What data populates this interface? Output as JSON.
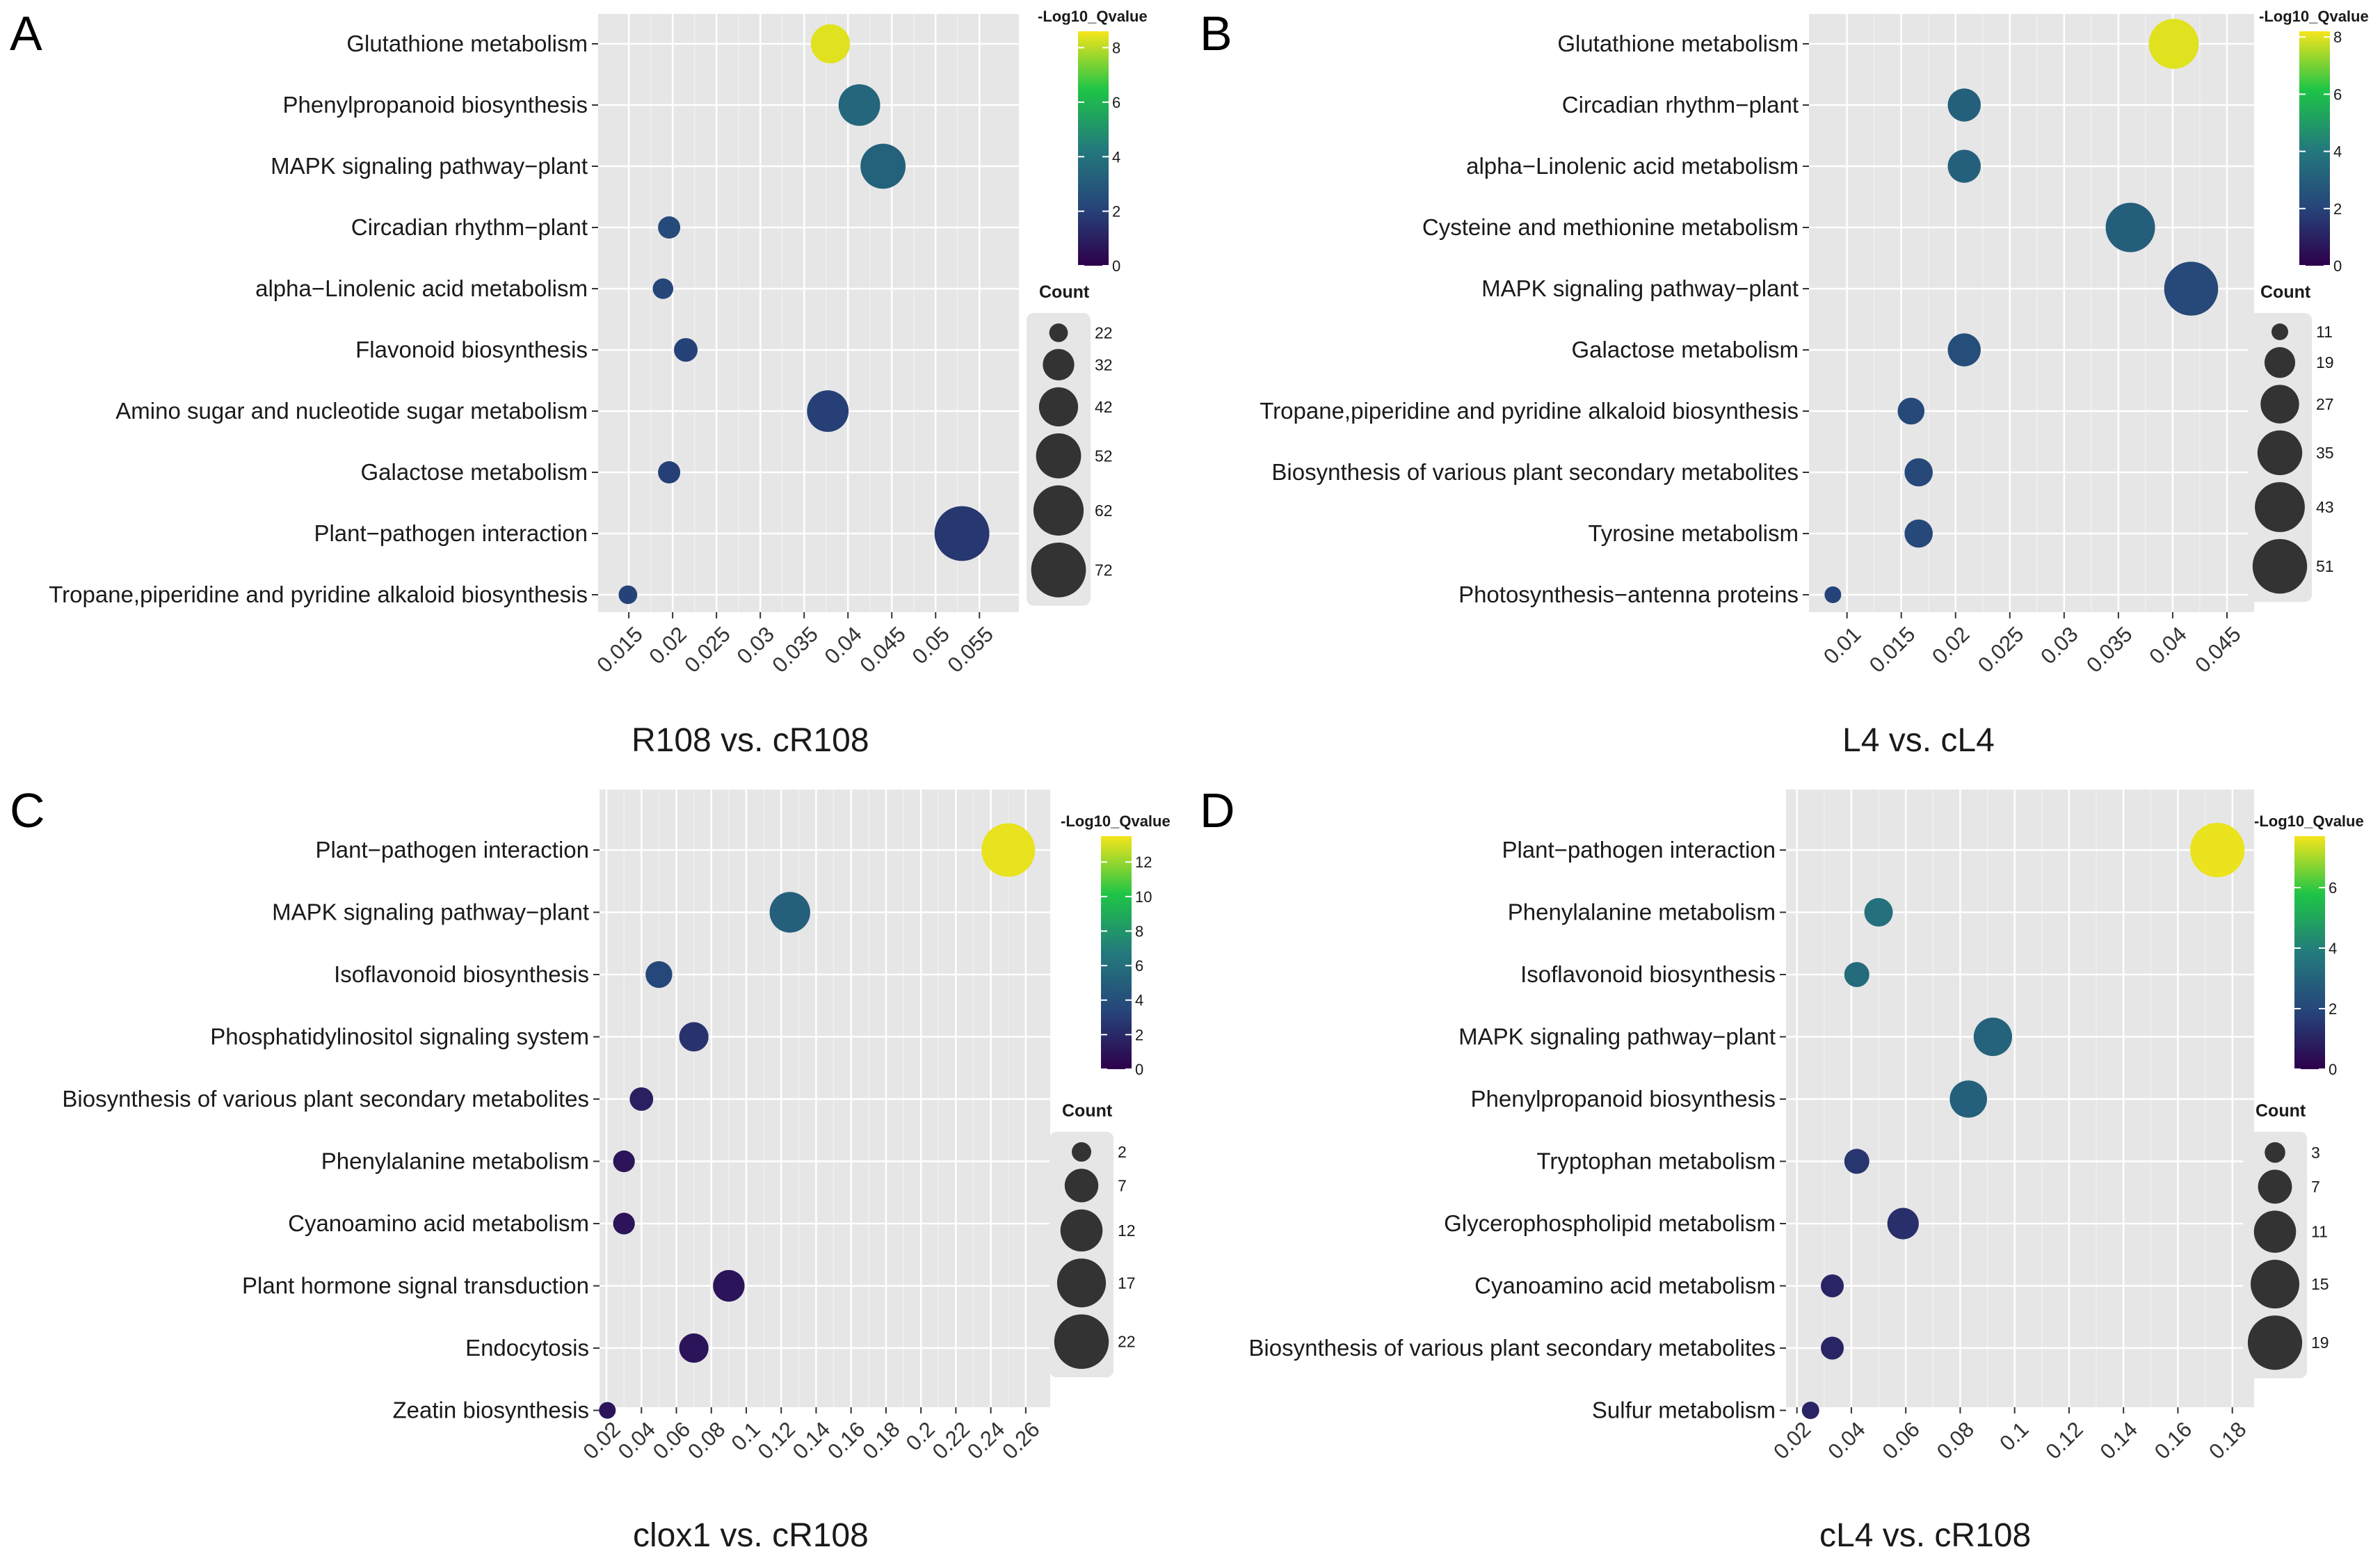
{
  "chart_data": [
    {
      "type": "scatter",
      "panel_label": "A",
      "title": "R108 vs. cR108",
      "color_title": "-Log10_Qvalue",
      "color_max": 8.6,
      "color_ticks": [
        0,
        2,
        4,
        6,
        8
      ],
      "size_title": "Count",
      "size_range": [
        20,
        74
      ],
      "size_ticks": [
        22,
        32,
        42,
        52,
        62,
        72
      ],
      "xlim": [
        0.0115,
        0.0595
      ],
      "x_ticks": [
        0.015,
        0.02,
        0.025,
        0.03,
        0.035,
        0.04,
        0.045,
        0.05,
        0.055
      ],
      "x_tick_labels": [
        "0.015",
        "0.02",
        "0.025",
        "0.03",
        "0.035",
        "0.04",
        "0.045",
        "0.05",
        "0.055"
      ],
      "points": [
        {
          "term": "Glutathione metabolism",
          "x": 0.038,
          "count": 42,
          "q": 8.4
        },
        {
          "term": "Phenylpropanoid biosynthesis",
          "x": 0.0413,
          "count": 46,
          "q": 3.5
        },
        {
          "term": "MAPK signaling pathway−plant",
          "x": 0.044,
          "count": 52,
          "q": 3.3
        },
        {
          "term": "Circadian rhythm−plant",
          "x": 0.0196,
          "count": 24,
          "q": 2.4
        },
        {
          "term": "alpha−Linolenic acid metabolism",
          "x": 0.0189,
          "count": 23,
          "q": 2.2
        },
        {
          "term": "Flavonoid biosynthesis",
          "x": 0.0215,
          "count": 25,
          "q": 2.1
        },
        {
          "term": "Amino sugar and nucleotide sugar metabolism",
          "x": 0.0377,
          "count": 46,
          "q": 2.0
        },
        {
          "term": "Galactose metabolism",
          "x": 0.0196,
          "count": 24,
          "q": 2.0
        },
        {
          "term": "Plant−pathogen interaction",
          "x": 0.053,
          "count": 72,
          "q": 1.7
        },
        {
          "term": "Tropane,piperidine and pyridine alkaloid biosynthesis",
          "x": 0.0149,
          "count": 22,
          "q": 2.1
        }
      ]
    },
    {
      "type": "scatter",
      "panel_label": "B",
      "title": "L4 vs. cL4",
      "color_title": "-Log10_Qvalue",
      "color_max": 8.2,
      "color_ticks": [
        0,
        2,
        4,
        6,
        8
      ],
      "size_title": "Count",
      "size_range": [
        10,
        53
      ],
      "size_ticks": [
        11,
        19,
        27,
        35,
        43,
        51
      ],
      "xlim": [
        0.0065,
        0.0475
      ],
      "x_ticks": [
        0.01,
        0.015,
        0.02,
        0.025,
        0.03,
        0.035,
        0.04,
        0.045
      ],
      "x_tick_labels": [
        "0.01",
        "0.015",
        "0.02",
        "0.025",
        "0.03",
        "0.035",
        "0.04",
        "0.045"
      ],
      "points": [
        {
          "term": "Glutathione metabolism",
          "x": 0.0401,
          "count": 43,
          "q": 8.0
        },
        {
          "term": "Circadian rhythm−plant",
          "x": 0.0208,
          "count": 21,
          "q": 3.1
        },
        {
          "term": "alpha−Linolenic acid metabolism",
          "x": 0.0208,
          "count": 21,
          "q": 3.1
        },
        {
          "term": "Cysteine and methionine metabolism",
          "x": 0.0361,
          "count": 42,
          "q": 3.0
        },
        {
          "term": "MAPK signaling pathway−plant",
          "x": 0.0417,
          "count": 50,
          "q": 2.2
        },
        {
          "term": "Galactose metabolism",
          "x": 0.0208,
          "count": 21,
          "q": 2.4
        },
        {
          "term": "Tropane,piperidine and pyridine alkaloid biosynthesis",
          "x": 0.0159,
          "count": 16,
          "q": 2.2
        },
        {
          "term": "Biosynthesis of various plant secondary metabolites",
          "x": 0.0166,
          "count": 17,
          "q": 2.2
        },
        {
          "term": "Tyrosine metabolism",
          "x": 0.0166,
          "count": 17,
          "q": 2.2
        },
        {
          "term": "Photosynthesis−antenna proteins",
          "x": 0.0087,
          "count": 11,
          "q": 2.0
        }
      ]
    },
    {
      "type": "scatter",
      "panel_label": "C",
      "title": "clox1 vs. cR108",
      "color_title": "-Log10_Qvalue",
      "color_max": 13.5,
      "color_ticks": [
        0,
        2,
        4,
        6,
        8,
        10,
        12
      ],
      "size_title": "Count",
      "size_range": [
        1,
        23
      ],
      "size_ticks": [
        2,
        7,
        12,
        17,
        22
      ],
      "xlim": [
        0.016,
        0.274
      ],
      "x_ticks": [
        0.02,
        0.04,
        0.06,
        0.08,
        0.1,
        0.12,
        0.14,
        0.16,
        0.18,
        0.2,
        0.22,
        0.24,
        0.26
      ],
      "x_tick_labels": [
        "0.02",
        "0.04",
        "0.06",
        "0.08",
        "0.1",
        "0.12",
        "0.14",
        "0.16",
        "0.18",
        "0.2",
        "0.22",
        "0.24",
        "0.26"
      ],
      "points": [
        {
          "term": "Plant−pathogen interaction",
          "x": 0.25,
          "count": 21,
          "q": 13.3
        },
        {
          "term": "MAPK signaling pathway−plant",
          "x": 0.125,
          "count": 11,
          "q": 5.0
        },
        {
          "term": "Isoflavonoid biosynthesis",
          "x": 0.05,
          "count": 4,
          "q": 3.5
        },
        {
          "term": "Phosphatidylinositol signaling system",
          "x": 0.07,
          "count": 5,
          "q": 2.5
        },
        {
          "term": "Biosynthesis of various plant secondary metabolites",
          "x": 0.04,
          "count": 3,
          "q": 1.5
        },
        {
          "term": "Phenylalanine metabolism",
          "x": 0.03,
          "count": 2.5,
          "q": 1.0
        },
        {
          "term": "Cyanoamino acid metabolism",
          "x": 0.03,
          "count": 2.5,
          "q": 1.0
        },
        {
          "term": "Plant hormone signal transduction",
          "x": 0.09,
          "count": 6,
          "q": 1.0
        },
        {
          "term": "Endocytosis",
          "x": 0.07,
          "count": 5,
          "q": 1.0
        },
        {
          "term": "Zeatin biosynthesis",
          "x": 0.0205,
          "count": 1.5,
          "q": 1.0
        }
      ]
    },
    {
      "type": "scatter",
      "panel_label": "D",
      "title": "cL4 vs. cR108",
      "color_title": "-Log10_Qvalue",
      "color_max": 7.7,
      "color_ticks": [
        0,
        2,
        4,
        6
      ],
      "size_title": "Count",
      "size_range": [
        2,
        20
      ],
      "size_ticks": [
        3,
        7,
        11,
        15,
        19
      ],
      "xlim": [
        0.016,
        0.188
      ],
      "x_ticks": [
        0.02,
        0.04,
        0.06,
        0.08,
        0.1,
        0.12,
        0.14,
        0.16,
        0.18
      ],
      "x_tick_labels": [
        "0.02",
        "0.04",
        "0.06",
        "0.08",
        "0.1",
        "0.12",
        "0.14",
        "0.16",
        "0.18"
      ],
      "points": [
        {
          "term": "Plant−pathogen interaction",
          "x": 0.1745,
          "count": 19,
          "q": 7.6
        },
        {
          "term": "Phenylalanine metabolism",
          "x": 0.05,
          "count": 5,
          "q": 3.5
        },
        {
          "term": "Isoflavonoid biosynthesis",
          "x": 0.042,
          "count": 4,
          "q": 3.3
        },
        {
          "term": "MAPK signaling pathway−plant",
          "x": 0.092,
          "count": 9,
          "q": 3.0
        },
        {
          "term": "Phenylpropanoid biosynthesis",
          "x": 0.083,
          "count": 8.5,
          "q": 2.9
        },
        {
          "term": "Tryptophan metabolism",
          "x": 0.042,
          "count": 4,
          "q": 1.5
        },
        {
          "term": "Glycerophospholipid metabolism",
          "x": 0.059,
          "count": 6,
          "q": 1.3
        },
        {
          "term": "Cyanoamino acid metabolism",
          "x": 0.033,
          "count": 3.5,
          "q": 1.0
        },
        {
          "term": "Biosynthesis of various plant secondary metabolites",
          "x": 0.033,
          "count": 3.5,
          "q": 1.0
        },
        {
          "term": "Sulfur metabolism",
          "x": 0.025,
          "count": 2.5,
          "q": 1.0
        }
      ]
    }
  ]
}
